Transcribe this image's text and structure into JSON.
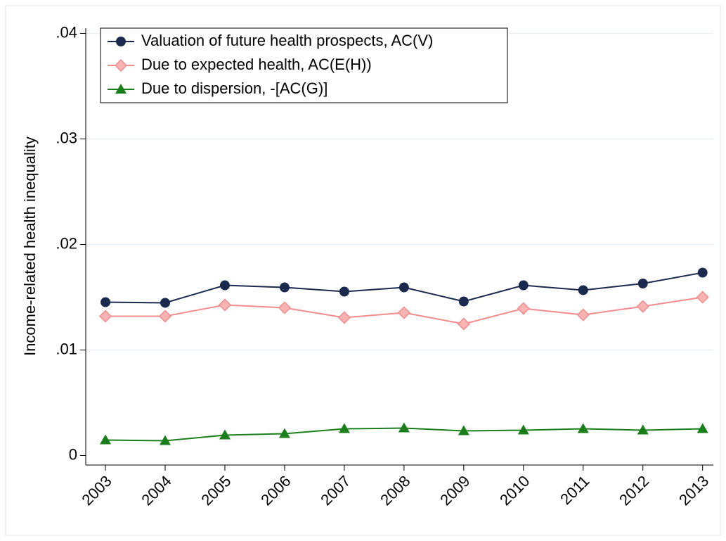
{
  "chart_data": {
    "type": "line",
    "y_label": "Income-related health inequality",
    "x": [
      2003,
      2004,
      2005,
      2006,
      2007,
      2008,
      2009,
      2010,
      2011,
      2012,
      2013
    ],
    "xlim": [
      2002.67,
      2013.18
    ],
    "xticks": [
      2003,
      2004,
      2005,
      2006,
      2007,
      2008,
      2009,
      2010,
      2011,
      2012,
      2013
    ],
    "ylim": [
      -0.0009,
      0.0405
    ],
    "yticks": [
      0,
      {
        "value": 0.01,
        "label": ".01"
      },
      {
        "value": 0.02,
        "label": ".02"
      },
      {
        "value": 0.03,
        "label": ".03"
      },
      {
        "value": 0.04,
        "label": ".04"
      }
    ],
    "grid": true,
    "legend_position": "top-left",
    "series": [
      {
        "name": "Valuation of future health prospects, AC(V)",
        "color": "#1a2a4f",
        "marker": "circle",
        "values": [
          0.01453,
          0.01447,
          0.01613,
          0.01593,
          0.01553,
          0.01593,
          0.0146,
          0.01613,
          0.01567,
          0.0163,
          0.01733
        ]
      },
      {
        "name": "Due to expected health, AC(E(H))",
        "color": "#f48c8c",
        "marker": "diamond",
        "values": [
          0.0132,
          0.0132,
          0.01427,
          0.014,
          0.01307,
          0.01353,
          0.01247,
          0.01393,
          0.01333,
          0.01413,
          0.015
        ]
      },
      {
        "name": "Due to dispersion, -[AC(G)]",
        "color": "#1a7f1a",
        "marker": "triangle",
        "values": [
          0.00147,
          0.0014,
          0.00193,
          0.00207,
          0.00253,
          0.0026,
          0.00233,
          0.0024,
          0.00253,
          0.0024,
          0.00253
        ]
      }
    ]
  }
}
